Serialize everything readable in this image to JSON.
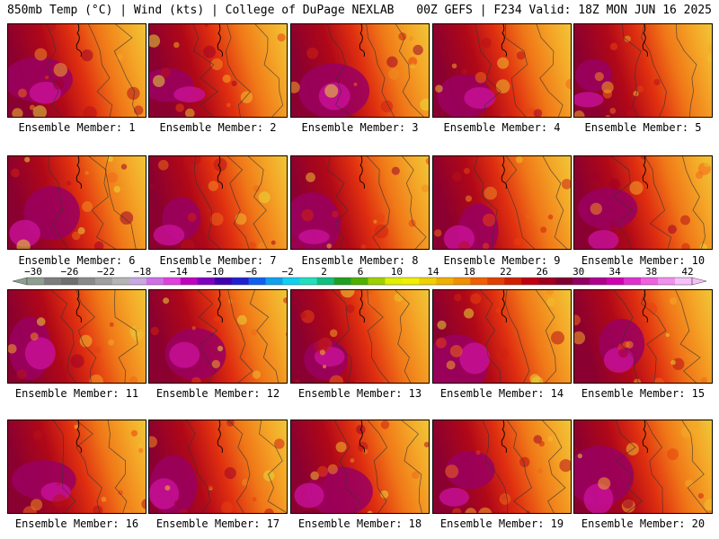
{
  "header": {
    "left": "850mb Temp (°C) | Wind (kts) | College of DuPage NEXLAB",
    "right": "00Z GEFS | F234 Valid: 18Z MON JUN 16 2025"
  },
  "panels": [
    {
      "label": "Ensemble Member: 1"
    },
    {
      "label": "Ensemble Member: 2"
    },
    {
      "label": "Ensemble Member: 3"
    },
    {
      "label": "Ensemble Member: 4"
    },
    {
      "label": "Ensemble Member: 5"
    },
    {
      "label": "Ensemble Member: 6"
    },
    {
      "label": "Ensemble Member: 7"
    },
    {
      "label": "Ensemble Member: 8"
    },
    {
      "label": "Ensemble Member: 9"
    },
    {
      "label": "Ensemble Member: 10"
    },
    {
      "label": "Ensemble Member: 11"
    },
    {
      "label": "Ensemble Member: 12"
    },
    {
      "label": "Ensemble Member: 13"
    },
    {
      "label": "Ensemble Member: 14"
    },
    {
      "label": "Ensemble Member: 15"
    },
    {
      "label": "Ensemble Member: 16"
    },
    {
      "label": "Ensemble Member: 17"
    },
    {
      "label": "Ensemble Member: 18"
    },
    {
      "label": "Ensemble Member: 19"
    },
    {
      "label": "Ensemble Member: 20"
    }
  ],
  "colorbar": {
    "labels": [
      "−30",
      "−26",
      "−22",
      "−18",
      "−14",
      "−10",
      "−6",
      "−2",
      "2",
      "6",
      "10",
      "14",
      "18",
      "22",
      "26",
      "30",
      "34",
      "38",
      "42"
    ],
    "colors": [
      "#8f9f8f",
      "#7d7d7d",
      "#6f6f6f",
      "#8a8a8a",
      "#a0a0a0",
      "#b5b5b5",
      "#c8a8e0",
      "#d070e8",
      "#e040e0",
      "#c000c0",
      "#8000c0",
      "#4000b0",
      "#2020d0",
      "#1060f0",
      "#10a0f0",
      "#10d0f0",
      "#20e0c0",
      "#10c080",
      "#20a020",
      "#50b000",
      "#a0d000",
      "#e0f000",
      "#f0f000",
      "#f0d000",
      "#f0b000",
      "#f09000",
      "#f06000",
      "#e04000",
      "#d02000",
      "#c00010",
      "#a00020",
      "#800030",
      "#900060",
      "#b00090",
      "#d000b0",
      "#e030d0",
      "#f060e0",
      "#f090f0",
      "#f8c0f8"
    ]
  }
}
